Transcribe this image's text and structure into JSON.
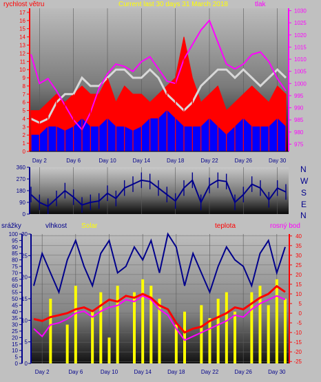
{
  "chart_data": [
    {
      "type": "line",
      "title": "Current last 30 days 31 March 2018",
      "left_label": "rychlost větru",
      "right_label": "tlak",
      "x_ticks": [
        "Day 2",
        "Day 6",
        "Day 10",
        "Day 14",
        "Day 18",
        "Day 22",
        "Day 26",
        "Day 30"
      ],
      "y_left_ticks": [
        "0",
        "1",
        "2",
        "3",
        "4",
        "5",
        "6",
        "7",
        "8",
        "9",
        "10",
        "11",
        "12",
        "13",
        "14",
        "15",
        "16",
        "17"
      ],
      "y_right_ticks": [
        "975",
        "980",
        "985",
        "990",
        "995",
        "1000",
        "1005",
        "1010",
        "1015",
        "1020",
        "1025",
        "1030"
      ],
      "ylim_left": [
        0,
        17.5
      ],
      "ylim_right": [
        972,
        1031
      ],
      "x_days": [
        1,
        2,
        3,
        4,
        5,
        6,
        7,
        8,
        9,
        10,
        11,
        12,
        13,
        14,
        15,
        16,
        17,
        18,
        19,
        20,
        21,
        22,
        23,
        24,
        25,
        26,
        27,
        28,
        29,
        30,
        31
      ],
      "series": [
        {
          "name": "tlak",
          "color": "#ff00ff",
          "values": [
            1012,
            1000,
            1002,
            997,
            991,
            985,
            981,
            988,
            998,
            1004,
            1008,
            1007,
            1005,
            1009,
            1011,
            1006,
            1001,
            1000,
            1010,
            1016,
            1022,
            1026,
            1017,
            1008,
            1006,
            1008,
            1012,
            1013,
            1009,
            1002,
            997
          ]
        },
        {
          "color": "#ff0000",
          "values": [
            5,
            5,
            6,
            7,
            6,
            7,
            8,
            7,
            7,
            9,
            6,
            8,
            7,
            7,
            6,
            7,
            8,
            9,
            14,
            9,
            6,
            7,
            8,
            5,
            6,
            7,
            8,
            7,
            6,
            8,
            7
          ]
        },
        {
          "color": "#d8d8d8",
          "values": [
            4,
            3.5,
            4,
            6,
            7,
            7,
            9,
            8,
            8,
            9,
            10,
            10,
            9,
            9,
            10,
            9,
            7,
            6,
            5,
            6,
            8,
            9,
            10,
            10,
            9,
            10,
            9,
            8,
            9,
            10,
            9
          ]
        },
        {
          "color": "#0000ff",
          "values": [
            2,
            2,
            3,
            3,
            2.5,
            3,
            4,
            3,
            3,
            4,
            3,
            3,
            2.5,
            3,
            4,
            4,
            5,
            4,
            3,
            3,
            3,
            4,
            3,
            2,
            3,
            4,
            3,
            3,
            3,
            4,
            3
          ]
        }
      ]
    },
    {
      "type": "line",
      "y_ticks": [
        "0",
        "90",
        "180",
        "270",
        "360"
      ],
      "ylim": [
        0,
        360
      ],
      "directions": [
        "N",
        "W",
        "S",
        "E",
        "N"
      ],
      "series": [
        {
          "color": "#00008b",
          "values": [
            150,
            90,
            60,
            120,
            180,
            130,
            70,
            90,
            100,
            160,
            120,
            200,
            230,
            260,
            250,
            200,
            150,
            100,
            200,
            260,
            90,
            220,
            260,
            250,
            90,
            150,
            230,
            200,
            110,
            200,
            170
          ]
        }
      ]
    },
    {
      "type": "line",
      "labels": {
        "rain": "srážky",
        "humidity": "vlhkost",
        "solar": "Solar",
        "temperature": "teplota",
        "dewpoint": "rosný bod"
      },
      "x_ticks": [
        "Day 2",
        "Day 6",
        "Day 10",
        "Day 14",
        "Day 18",
        "Day 22",
        "Day 26",
        "Day 30"
      ],
      "y_rain_ticks": [
        "0",
        "5",
        "10",
        "15",
        "20",
        "25",
        "30",
        "35",
        "40",
        "45",
        "50",
        "55",
        "60",
        "65",
        "70",
        "75",
        "80",
        "85",
        "90",
        "95",
        "100"
      ],
      "y_humidity_ticks": [
        "0",
        "5",
        "10",
        "15",
        "20",
        "25",
        "30"
      ],
      "y_temp_ticks": [
        "-25",
        "-20",
        "-15",
        "-10",
        "-5",
        "0",
        "5",
        "10",
        "15",
        "20",
        "25",
        "30",
        "35",
        "40"
      ],
      "ylim_temp": [
        -26,
        41
      ],
      "series": [
        {
          "name": "vlhkost",
          "color": "#00008b",
          "values": [
            60,
            85,
            70,
            55,
            80,
            95,
            75,
            60,
            85,
            95,
            70,
            75,
            90,
            80,
            95,
            70,
            100,
            90,
            60,
            85,
            70,
            55,
            75,
            90,
            80,
            75,
            60,
            85,
            95,
            70,
            90
          ]
        },
        {
          "name": "Solar",
          "color": "#ffff00",
          "values": [
            0,
            0,
            50,
            0,
            30,
            60,
            0,
            40,
            55,
            20,
            60,
            0,
            55,
            65,
            60,
            50,
            0,
            30,
            40,
            0,
            45,
            35,
            50,
            55,
            40,
            0,
            55,
            60,
            45,
            65,
            50
          ]
        },
        {
          "name": "teplota",
          "color": "#ff0000",
          "values": [
            -3,
            -4,
            -2,
            -1,
            0,
            2,
            3,
            1,
            4,
            7,
            6,
            9,
            8,
            10,
            8,
            4,
            2,
            -5,
            -10,
            -8,
            -7,
            -4,
            -2,
            0,
            3,
            2,
            5,
            8,
            10,
            14,
            11
          ]
        },
        {
          "name": "rosný bod",
          "color": "#ff00ff",
          "values": [
            -8,
            -12,
            -6,
            -5,
            -3,
            0,
            1,
            -2,
            1,
            3,
            4,
            7,
            6,
            9,
            7,
            2,
            -1,
            -8,
            -14,
            -12,
            -10,
            -8,
            -6,
            -4,
            -1,
            -2,
            2,
            5,
            7,
            9,
            7
          ]
        }
      ]
    }
  ]
}
